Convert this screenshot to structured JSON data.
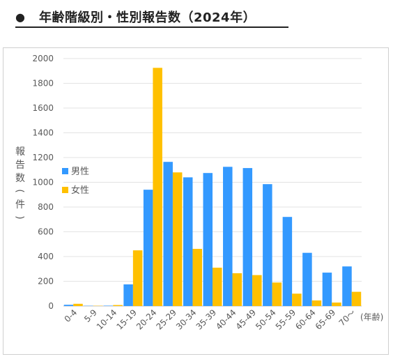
{
  "header": {
    "bullet": "●",
    "title": "年齢階級別・性別報告数（2024年）"
  },
  "chart_data": {
    "type": "bar",
    "title": "",
    "xlabel": "(年齢)",
    "ylabel": "報告数（件）",
    "ylim": [
      0,
      2000
    ],
    "yticks": [
      0,
      200,
      400,
      600,
      800,
      1000,
      1200,
      1400,
      1600,
      1800,
      2000
    ],
    "grid": true,
    "legend_position": "left-center",
    "categories": [
      "0-4",
      "5-9",
      "10-14",
      "15-19",
      "20-24",
      "25-29",
      "30-34",
      "35-39",
      "40-44",
      "45-49",
      "50-54",
      "55-59",
      "60-64",
      "65-69",
      "70～"
    ],
    "series": [
      {
        "name": "男性",
        "color": "#3399ff",
        "values": [
          10,
          2,
          3,
          175,
          940,
          1165,
          1040,
          1075,
          1125,
          1115,
          985,
          720,
          430,
          270,
          320
        ]
      },
      {
        "name": "女性",
        "color": "#ffc000",
        "values": [
          18,
          2,
          8,
          450,
          1925,
          1080,
          462,
          310,
          265,
          250,
          190,
          100,
          45,
          28,
          115
        ]
      }
    ]
  }
}
